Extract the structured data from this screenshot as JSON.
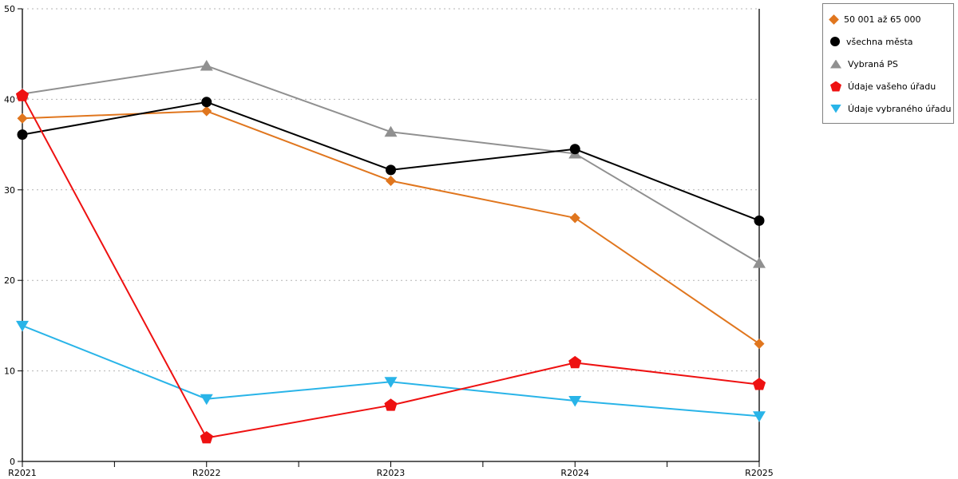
{
  "chart_data": {
    "type": "line",
    "title": "",
    "xlabel": "",
    "ylabel": "",
    "x": [
      "R2021",
      "R2022",
      "R2023",
      "R2024",
      "R2025"
    ],
    "ylim": [
      0,
      50
    ],
    "yticks": [
      0,
      10,
      20,
      30,
      40,
      50
    ],
    "grid": "horizontal dotted gridlines at 10,20,30,40,50",
    "legend_position": "outside top-right, boxed",
    "series": [
      {
        "name": "50 001 až 65 000",
        "color": "#E0761E",
        "marker": "diamond",
        "values": [
          37.9,
          38.7,
          31.0,
          26.9,
          13.0
        ]
      },
      {
        "name": "všechna města",
        "color": "#000000",
        "marker": "circle",
        "values": [
          36.1,
          39.7,
          32.2,
          34.5,
          26.6
        ]
      },
      {
        "name": "Vybraná PS",
        "color": "#909090",
        "marker": "triangle-up",
        "values": [
          40.6,
          43.7,
          36.4,
          34.0,
          21.9
        ]
      },
      {
        "name": "Údaje vašeho úřadu",
        "color": "#EE1111",
        "marker": "pentagon",
        "values": [
          40.4,
          2.6,
          6.2,
          10.9,
          8.5
        ]
      },
      {
        "name": "Údaje vybraného úřadu",
        "color": "#29B4E8",
        "marker": "triangle-down",
        "values": [
          15.0,
          6.9,
          8.8,
          6.7,
          5.0
        ]
      }
    ],
    "axis_color": "#000000",
    "gridline_color": "#b3b3b3",
    "tick_label_color": "#000000"
  }
}
